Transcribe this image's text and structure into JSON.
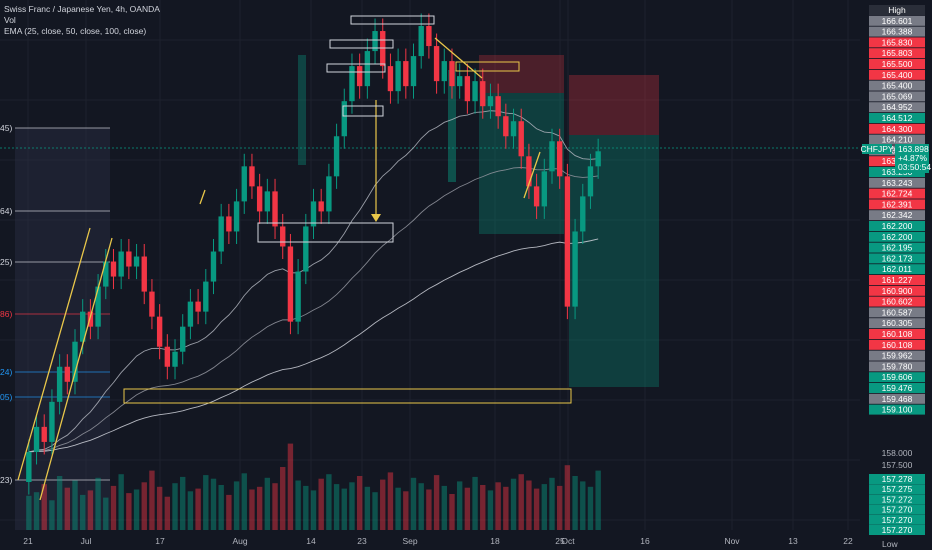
{
  "header": {
    "symbol_line": "Swiss Franc / Japanese Yen, 4h, OANDA",
    "vol_label": "Vol",
    "ema_label": "EMA (25, close, 50, close, 100, close)"
  },
  "chart_data": {
    "type": "candlestick",
    "symbol": "CHFJPY",
    "timeframe": "4h",
    "x_ticks": [
      "21",
      "Jul",
      "17",
      "Aug",
      "14",
      "23",
      "Sep",
      "18",
      "25",
      "Oct",
      "16",
      "Nov",
      "13",
      "22"
    ],
    "price_ladder": [
      {
        "label": "High",
        "color": "#2a2e39"
      },
      {
        "label": "166.601",
        "color": "#787b86"
      },
      {
        "label": "166.388",
        "color": "#787b86"
      },
      {
        "label": "165.830",
        "color": "#f23645"
      },
      {
        "label": "165.803",
        "color": "#f23645"
      },
      {
        "label": "165.500",
        "color": "#f23645"
      },
      {
        "label": "165.400",
        "color": "#f23645"
      },
      {
        "label": "165.400",
        "color": "#787b86"
      },
      {
        "label": "165.069",
        "color": "#787b86"
      },
      {
        "label": "164.952",
        "color": "#787b86"
      },
      {
        "label": "164.512",
        "color": "#089981"
      },
      {
        "label": "164.300",
        "color": "#f23645"
      },
      {
        "label": "164.210",
        "color": "#787b86"
      },
      {
        "label": "163.826",
        "color": "#787b86"
      },
      {
        "label": "163.600",
        "color": "#f23645"
      },
      {
        "label": "163.250",
        "color": "#089981"
      },
      {
        "label": "163.243",
        "color": "#787b86"
      },
      {
        "label": "162.724",
        "color": "#f23645"
      },
      {
        "label": "162.391",
        "color": "#f23645"
      },
      {
        "label": "162.342",
        "color": "#787b86"
      },
      {
        "label": "162.200",
        "color": "#089981"
      },
      {
        "label": "162.200",
        "color": "#089981"
      },
      {
        "label": "162.195",
        "color": "#089981"
      },
      {
        "label": "162.173",
        "color": "#089981"
      },
      {
        "label": "162.011",
        "color": "#089981"
      },
      {
        "label": "161.227",
        "color": "#f23645"
      },
      {
        "label": "160.900",
        "color": "#f23645"
      },
      {
        "label": "160.602",
        "color": "#f23645"
      },
      {
        "label": "160.587",
        "color": "#787b86"
      },
      {
        "label": "160.305",
        "color": "#787b86"
      },
      {
        "label": "160.108",
        "color": "#f23645"
      },
      {
        "label": "160.108",
        "color": "#f23645"
      },
      {
        "label": "159.962",
        "color": "#787b86"
      },
      {
        "label": "159.780",
        "color": "#787b86"
      },
      {
        "label": "159.606",
        "color": "#089981"
      },
      {
        "label": "159.476",
        "color": "#089981"
      },
      {
        "label": "159.468",
        "color": "#787b86"
      },
      {
        "label": "159.100",
        "color": "#089981"
      }
    ],
    "current_price": {
      "symbol": "CHFJPY",
      "price": "163.898",
      "change": "+4.87%",
      "countdown": "03:50:54"
    },
    "lower_scale": [
      "158.000",
      "157.500"
    ],
    "lower_labels": [
      "157.278",
      "157.275",
      "157.272",
      "157.270",
      "157.270",
      "157.270"
    ],
    "bottom_label": "Low",
    "fib_levels": [
      {
        "label": "45)",
        "color": "#d1d4dc"
      },
      {
        "label": "64)",
        "color": "#d1d4dc"
      },
      {
        "label": "25)",
        "color": "#d1d4dc"
      },
      {
        "label": "86)",
        "color": "#f23645"
      },
      {
        "label": "24)",
        "color": "#2196f3"
      },
      {
        "label": "05)",
        "color": "#2196f3"
      },
      {
        "label": "23)",
        "color": "#d1d4dc"
      }
    ],
    "candles": [
      {
        "o": 157.3,
        "c": 157.9
      },
      {
        "o": 157.9,
        "c": 158.4
      },
      {
        "o": 158.4,
        "c": 158.1
      },
      {
        "o": 158.1,
        "c": 158.9
      },
      {
        "o": 158.9,
        "c": 159.6
      },
      {
        "o": 159.6,
        "c": 159.3
      },
      {
        "o": 159.3,
        "c": 160.1
      },
      {
        "o": 160.1,
        "c": 160.7
      },
      {
        "o": 160.7,
        "c": 160.4
      },
      {
        "o": 160.4,
        "c": 161.2
      },
      {
        "o": 161.2,
        "c": 161.7
      },
      {
        "o": 161.7,
        "c": 161.4
      },
      {
        "o": 161.4,
        "c": 161.9
      },
      {
        "o": 161.9,
        "c": 161.6
      },
      {
        "o": 161.6,
        "c": 161.8
      },
      {
        "o": 161.8,
        "c": 161.1
      },
      {
        "o": 161.1,
        "c": 160.6
      },
      {
        "o": 160.6,
        "c": 160.0
      },
      {
        "o": 160.0,
        "c": 159.6
      },
      {
        "o": 159.6,
        "c": 159.9
      },
      {
        "o": 159.9,
        "c": 160.4
      },
      {
        "o": 160.4,
        "c": 160.9
      },
      {
        "o": 160.9,
        "c": 160.7
      },
      {
        "o": 160.7,
        "c": 161.3
      },
      {
        "o": 161.3,
        "c": 161.9
      },
      {
        "o": 161.9,
        "c": 162.6
      },
      {
        "o": 162.6,
        "c": 162.3
      },
      {
        "o": 162.3,
        "c": 162.9
      },
      {
        "o": 162.9,
        "c": 163.6
      },
      {
        "o": 163.6,
        "c": 163.2
      },
      {
        "o": 163.2,
        "c": 162.7
      },
      {
        "o": 162.7,
        "c": 163.1
      },
      {
        "o": 163.1,
        "c": 162.4
      },
      {
        "o": 162.4,
        "c": 162.0
      },
      {
        "o": 162.0,
        "c": 160.5
      },
      {
        "o": 160.5,
        "c": 161.5
      },
      {
        "o": 161.5,
        "c": 162.4
      },
      {
        "o": 162.4,
        "c": 162.9
      },
      {
        "o": 162.9,
        "c": 162.7
      },
      {
        "o": 162.7,
        "c": 163.4
      },
      {
        "o": 163.4,
        "c": 164.2
      },
      {
        "o": 164.2,
        "c": 164.9
      },
      {
        "o": 164.9,
        "c": 165.6
      },
      {
        "o": 165.6,
        "c": 165.2
      },
      {
        "o": 165.2,
        "c": 165.9
      },
      {
        "o": 165.9,
        "c": 166.3
      },
      {
        "o": 166.3,
        "c": 165.6
      },
      {
        "o": 165.6,
        "c": 165.1
      },
      {
        "o": 165.1,
        "c": 165.7
      },
      {
        "o": 165.7,
        "c": 165.2
      },
      {
        "o": 165.2,
        "c": 165.8
      },
      {
        "o": 165.8,
        "c": 166.4
      },
      {
        "o": 166.4,
        "c": 166.0
      },
      {
        "o": 166.0,
        "c": 165.3
      },
      {
        "o": 165.3,
        "c": 165.7
      },
      {
        "o": 165.7,
        "c": 165.2
      },
      {
        "o": 165.2,
        "c": 165.4
      },
      {
        "o": 165.4,
        "c": 164.9
      },
      {
        "o": 164.9,
        "c": 165.3
      },
      {
        "o": 165.3,
        "c": 164.8
      },
      {
        "o": 164.8,
        "c": 165.0
      },
      {
        "o": 165.0,
        "c": 164.6
      },
      {
        "o": 164.6,
        "c": 164.2
      },
      {
        "o": 164.2,
        "c": 164.5
      },
      {
        "o": 164.5,
        "c": 163.8
      },
      {
        "o": 163.8,
        "c": 163.2
      },
      {
        "o": 163.2,
        "c": 162.8
      },
      {
        "o": 162.8,
        "c": 163.5
      },
      {
        "o": 163.5,
        "c": 164.1
      },
      {
        "o": 164.1,
        "c": 163.4
      },
      {
        "o": 163.4,
        "c": 160.8
      },
      {
        "o": 160.8,
        "c": 162.3
      },
      {
        "o": 162.3,
        "c": 163.0
      },
      {
        "o": 163.0,
        "c": 163.6
      },
      {
        "o": 163.6,
        "c": 163.9
      }
    ],
    "volume": [
      38,
      42,
      51,
      33,
      60,
      47,
      55,
      39,
      44,
      58,
      36,
      49,
      62,
      41,
      45,
      53,
      66,
      48,
      37,
      52,
      59,
      43,
      46,
      61,
      57,
      50,
      39,
      54,
      63,
      45,
      48,
      58,
      52,
      70,
      96,
      55,
      49,
      44,
      57,
      62,
      51,
      46,
      53,
      60,
      48,
      42,
      56,
      64,
      47,
      43,
      58,
      52,
      45,
      61,
      49,
      40,
      54,
      47,
      59,
      50,
      44,
      53,
      48,
      57,
      62,
      55,
      46,
      51,
      58,
      49,
      72,
      60,
      54,
      48,
      66
    ]
  }
}
